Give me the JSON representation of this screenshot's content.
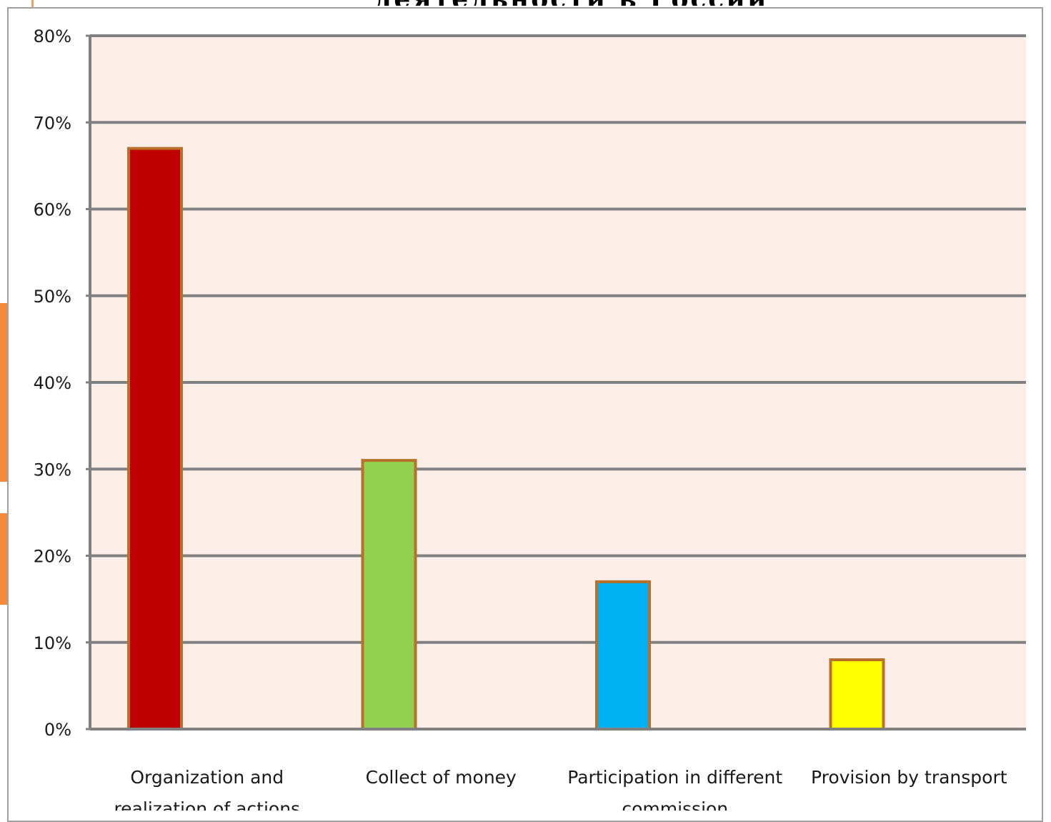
{
  "slide": {
    "title": "деятельности в России"
  },
  "colors": {
    "plot_background": "#fbeee9",
    "gridline": "#808080",
    "bar_border": "#b8702a"
  },
  "chart_data": {
    "type": "bar",
    "title": "",
    "xlabel": "",
    "ylabel": "",
    "ylim": [
      0,
      80
    ],
    "y_tick_values": [
      0,
      10,
      20,
      30,
      40,
      50,
      60,
      70,
      80
    ],
    "y_tick_labels": [
      "0%",
      "10%",
      "20%",
      "30%",
      "40%",
      "50%",
      "60%",
      "70%",
      "80%"
    ],
    "grid": true,
    "categories": [
      [
        "Organization and",
        "realization of actions"
      ],
      [
        "Collect of money"
      ],
      [
        "Participation in different",
        "commission"
      ],
      [
        "Provision by transport"
      ]
    ],
    "values": [
      67,
      31,
      17,
      8
    ],
    "bar_colors": [
      "#c00000",
      "#92d050",
      "#00b0f0",
      "#ffff00"
    ]
  }
}
